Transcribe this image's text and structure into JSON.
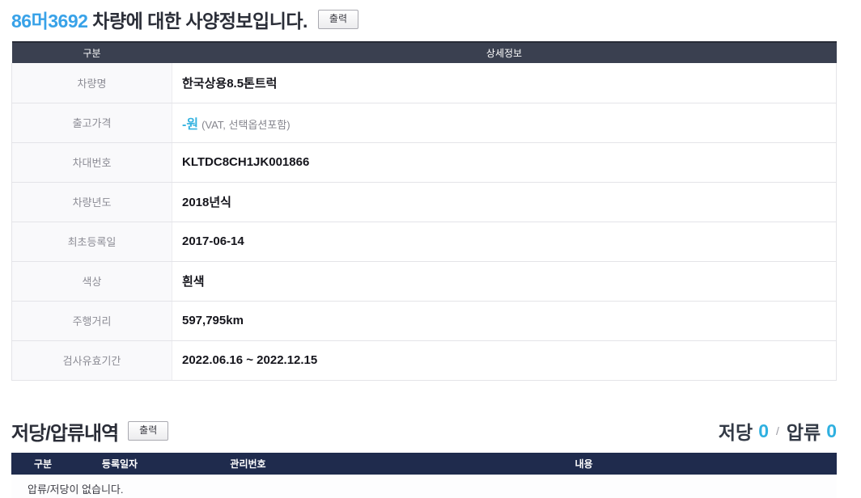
{
  "title": {
    "plate": "86머3692",
    "text": " 차량에 대한 사양정보입니다.",
    "print_button": "출력"
  },
  "colors": {
    "plate_blue": "#38a2e8",
    "accent_cyan": "#36b3e0",
    "spec_header_bg": "#3a4050",
    "lien_header_bg": "#1f2b4d"
  },
  "spec_table": {
    "headers": {
      "category": "구분",
      "detail": "상세정보"
    },
    "rows": [
      {
        "label": "차량명",
        "value": "한국상용8.5톤트럭"
      },
      {
        "label": "출고가격",
        "value": "-원",
        "note": "(VAT, 선택옵션포함)"
      },
      {
        "label": "차대번호",
        "value": "KLTDC8CH1JK001866"
      },
      {
        "label": "차량년도",
        "value": "2018년식"
      },
      {
        "label": "최초등록일",
        "value": "2017-06-14"
      },
      {
        "label": "색상",
        "value": "흰색"
      },
      {
        "label": "주행거리",
        "value": "597,795km"
      },
      {
        "label": "검사유효기간",
        "value": "2022.06.16 ~ 2022.12.15"
      }
    ]
  },
  "lien_section": {
    "title": "저당/압류내역",
    "print_button": "출력",
    "summary": {
      "mortgage_label": "저당",
      "mortgage_count": "0",
      "separator": "/",
      "seizure_label": "압류",
      "seizure_count": "0"
    },
    "table": {
      "headers": [
        "구분",
        "등록일자",
        "관리번호",
        "내용"
      ],
      "empty_message": "압류/저당이 없습니다."
    }
  }
}
